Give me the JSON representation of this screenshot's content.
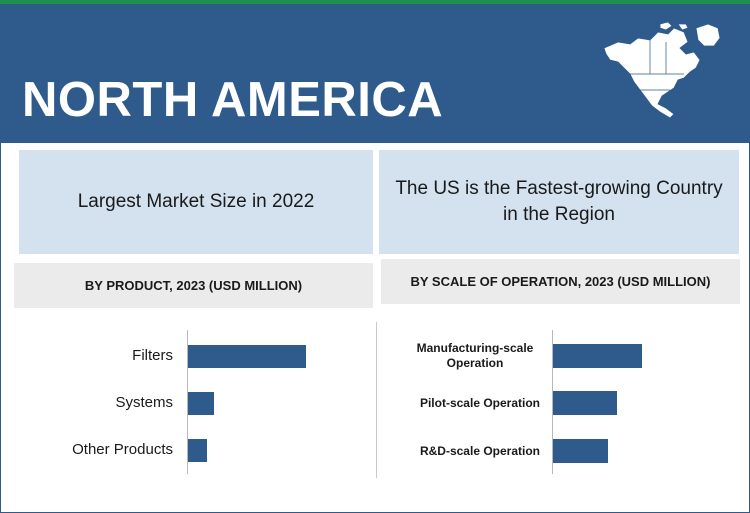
{
  "header": {
    "title": "NORTH AMERICA",
    "map_icon": "north-america-map-icon",
    "colors": {
      "background": "#2e5a8c",
      "stripe": "#1f8f4e",
      "bar": "#2e5a8c"
    }
  },
  "left_panel": {
    "heading": "Largest Market Size in 2022",
    "subheading": "BY PRODUCT, 2023 (USD MILLION)"
  },
  "right_panel": {
    "heading": "The US is the Fastest-growing Country in the Region",
    "subheading": "BY SCALE OF OPERATION, 2023 (USD MILLION)"
  },
  "chart_data": [
    {
      "type": "bar",
      "orientation": "horizontal",
      "title": "BY PRODUCT, 2023 (USD MILLION)",
      "categories": [
        "Filters",
        "Systems",
        "Other Products"
      ],
      "values": [
        100,
        22,
        16
      ],
      "xlim": [
        0,
        100
      ]
    },
    {
      "type": "bar",
      "orientation": "horizontal",
      "title": "BY SCALE OF OPERATION, 2023 (USD MILLION)",
      "categories": [
        "Manufacturing-scale Operation",
        "Pilot-scale Operation",
        "R&D-scale Operation"
      ],
      "values": [
        100,
        72,
        62
      ],
      "xlim": [
        0,
        100
      ]
    }
  ]
}
